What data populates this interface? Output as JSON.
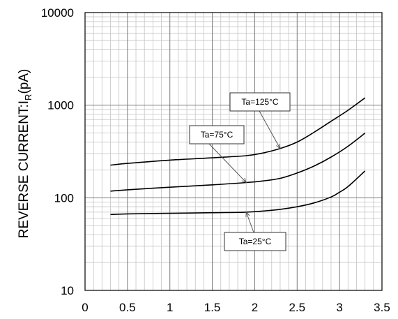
{
  "chart_data": {
    "type": "line",
    "title": "",
    "xlabel": "",
    "ylabel": {
      "main": "REVERSE CURRENT:I",
      "subscript": "R",
      "unit": "(pA)"
    },
    "y_scale": "log",
    "xlim": [
      0,
      3.5
    ],
    "ylim": [
      10,
      10000
    ],
    "grid": true,
    "x_ticks": [
      "0",
      "0.5",
      "1",
      "1.5",
      "2",
      "2.5",
      "3",
      "3.5"
    ],
    "y_ticks": [
      "10",
      "100",
      "1000",
      "10000"
    ],
    "series": [
      {
        "name": "Ta=125°C",
        "x": [
          0.3,
          0.5,
          1.0,
          1.5,
          1.9,
          2.1,
          2.3,
          2.5,
          2.7,
          2.9,
          3.1,
          3.3
        ],
        "y": [
          225,
          235,
          255,
          270,
          285,
          305,
          340,
          400,
          510,
          670,
          880,
          1200
        ]
      },
      {
        "name": "Ta=75°C",
        "x": [
          0.3,
          0.5,
          1.0,
          1.5,
          1.9,
          2.1,
          2.3,
          2.5,
          2.7,
          2.9,
          3.1,
          3.3
        ],
        "y": [
          118,
          122,
          130,
          138,
          146,
          152,
          162,
          185,
          220,
          275,
          360,
          500
        ]
      },
      {
        "name": "Ta=25°C",
        "x": [
          0.3,
          0.5,
          1.0,
          1.5,
          1.9,
          2.1,
          2.3,
          2.5,
          2.7,
          2.9,
          3.0,
          3.1,
          3.3
        ],
        "y": [
          66,
          67,
          68,
          69,
          70,
          72,
          75,
          80,
          88,
          102,
          115,
          132,
          195
        ]
      }
    ],
    "annotations": [
      {
        "label": "Ta=125°C",
        "points_to": {
          "x": 2.3,
          "y": 340
        }
      },
      {
        "label": "Ta=75°C",
        "points_to": {
          "x": 1.9,
          "y": 146
        }
      },
      {
        "label": "Ta=25°C",
        "points_to": {
          "x": 1.9,
          "y": 70
        }
      }
    ]
  }
}
